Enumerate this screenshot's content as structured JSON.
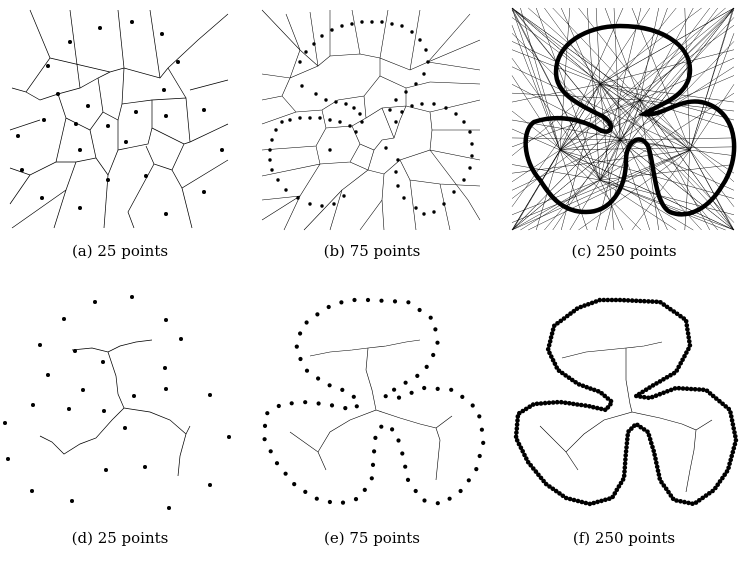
{
  "panels": [
    {
      "id": "a",
      "caption": "(a) 25 points"
    },
    {
      "id": "b",
      "caption": "(b) 75 points"
    },
    {
      "id": "c",
      "caption": "(c) 250 points"
    },
    {
      "id": "d",
      "caption": "(d) 25 points"
    },
    {
      "id": "e",
      "caption": "(e) 75 points"
    },
    {
      "id": "f",
      "caption": "(f) 250 points"
    }
  ]
}
